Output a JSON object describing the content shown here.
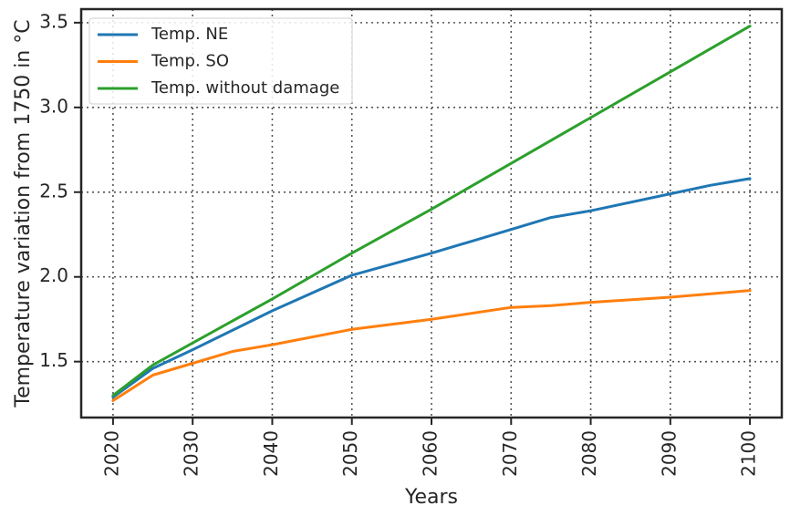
{
  "chart_data": {
    "type": "line",
    "title": "",
    "xlabel": "Years",
    "ylabel": "Temperature variation from 1750 in °C",
    "xlim": [
      2016,
      2104
    ],
    "ylim": [
      1.17,
      3.58
    ],
    "xticks": [
      2020,
      2030,
      2040,
      2050,
      2060,
      2070,
      2080,
      2090,
      2100
    ],
    "yticks": [
      1.5,
      2.0,
      2.5,
      3.0,
      3.5
    ],
    "grid": true,
    "legend_position": "top-left",
    "series": [
      {
        "name": "Temp. NE",
        "color": "#1f77b4",
        "x": [
          2020,
          2025,
          2030,
          2040,
          2050,
          2060,
          2070,
          2075,
          2080,
          2090,
          2095,
          2100
        ],
        "y": [
          1.29,
          1.46,
          1.57,
          1.8,
          2.01,
          2.14,
          2.28,
          2.35,
          2.39,
          2.49,
          2.54,
          2.58
        ]
      },
      {
        "name": "Temp. SO",
        "color": "#ff7f0e",
        "x": [
          2020,
          2025,
          2030,
          2035,
          2040,
          2050,
          2060,
          2070,
          2075,
          2080,
          2090,
          2100
        ],
        "y": [
          1.27,
          1.42,
          1.49,
          1.56,
          1.6,
          1.69,
          1.75,
          1.82,
          1.83,
          1.85,
          1.88,
          1.92
        ]
      },
      {
        "name": "Temp.  without damage",
        "color": "#2ca02c",
        "x": [
          2020,
          2025,
          2030,
          2040,
          2050,
          2060,
          2070,
          2080,
          2090,
          2100
        ],
        "y": [
          1.3,
          1.48,
          1.61,
          1.87,
          2.14,
          2.4,
          2.67,
          2.94,
          3.21,
          3.48
        ]
      }
    ]
  }
}
